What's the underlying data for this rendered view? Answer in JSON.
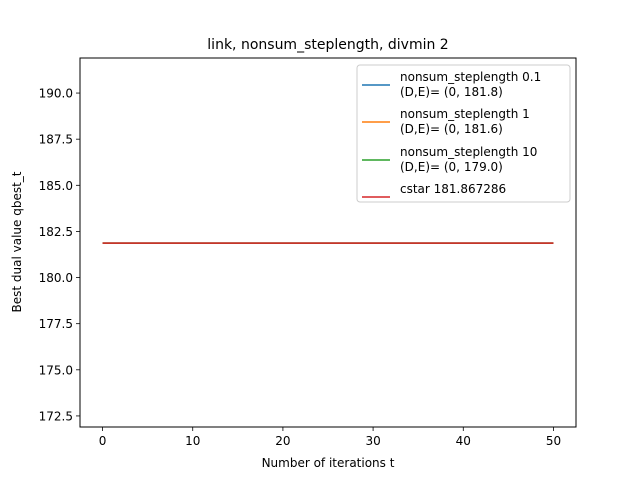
{
  "chart_data": {
    "type": "line",
    "title": "link, nonsum_steplength, divmin 2",
    "xlabel": "Number of iterations t",
    "ylabel": "Best dual value qbest_t",
    "xlim": [
      -2.5,
      52.5
    ],
    "ylim": [
      171.9,
      191.9
    ],
    "x_ticks": [
      0,
      10,
      20,
      30,
      40,
      50
    ],
    "y_ticks": [
      172.5,
      175.0,
      177.5,
      180.0,
      182.5,
      185.0,
      187.5,
      190.0
    ],
    "x_tick_labels": [
      "0",
      "10",
      "20",
      "30",
      "40",
      "50"
    ],
    "y_tick_labels": [
      "172.5",
      "175.0",
      "177.5",
      "180.0",
      "182.5",
      "185.0",
      "187.5",
      "190.0"
    ],
    "grid": false,
    "legend_position": "top-right",
    "series": [
      {
        "name": "nonsum_steplength 0.1\n(D,E)= (0, 181.8)",
        "legend_lines": [
          "nonsum_steplength 0.1",
          "(D,E)= (0, 181.8)"
        ],
        "color": "#1f77b4",
        "x": [
          0,
          50
        ],
        "values": [
          181.867286,
          181.867286
        ]
      },
      {
        "name": "nonsum_steplength 1\n(D,E)= (0, 181.6)",
        "legend_lines": [
          "nonsum_steplength 1",
          "(D,E)= (0, 181.6)"
        ],
        "color": "#ff7f0e",
        "x": [
          0,
          50
        ],
        "values": [
          181.867286,
          181.867286
        ]
      },
      {
        "name": "nonsum_steplength 10\n(D,E)= (0, 179.0)",
        "legend_lines": [
          "nonsum_steplength 10",
          "(D,E)= (0, 179.0)"
        ],
        "color": "#2ca02c",
        "x": [
          0,
          50
        ],
        "values": [
          181.867286,
          181.867286
        ]
      },
      {
        "name": "cstar 181.867286",
        "legend_lines": [
          "cstar 181.867286"
        ],
        "color": "#d62728",
        "x": [
          0,
          50
        ],
        "values": [
          181.867286,
          181.867286
        ]
      }
    ]
  }
}
